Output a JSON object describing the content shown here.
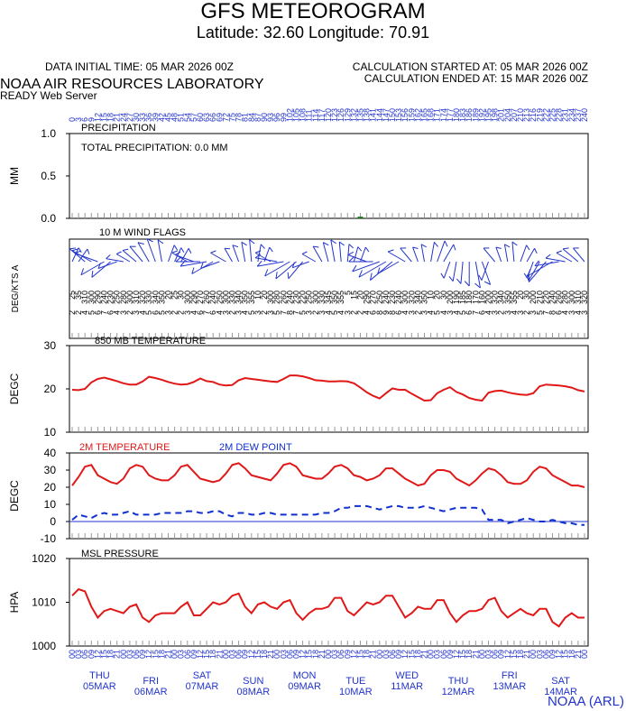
{
  "title": "GFS METEOROGRAM",
  "subtitle": "Latitude: 32.60 Longitude:  70.91",
  "data_initial_time": "DATA INITIAL TIME: 05 MAR 2026 00Z",
  "calc_started": "CALCULATION STARTED AT: 05 MAR 2026 00Z",
  "calc_ended": "CALCULATION ENDED AT: 15 MAR 2026 00Z",
  "org": "NOAA AIR RESOURCES LABORATORY",
  "server": "READY Web Server",
  "footer": "NOAA (ARL)",
  "xlim": [
    0,
    240
  ],
  "forecast_hours": [
    0,
    3,
    6,
    9,
    12,
    15,
    18,
    21,
    24,
    27,
    30,
    33,
    36,
    39,
    42,
    45,
    48,
    51,
    54,
    57,
    60,
    63,
    66,
    69,
    72,
    75,
    78,
    81,
    84,
    87,
    90,
    93,
    96,
    99,
    102,
    105,
    108,
    111,
    114,
    117,
    120,
    123,
    126,
    129,
    132,
    135,
    138,
    141,
    144,
    147,
    150,
    153,
    156,
    159,
    162,
    165,
    168,
    171,
    174,
    177,
    180,
    183,
    186,
    189,
    192,
    195,
    198,
    201,
    204,
    207,
    210,
    213,
    216,
    219,
    222,
    225,
    228,
    231,
    234,
    237,
    240
  ],
  "hour_labels": [
    "00",
    "03",
    "06",
    "09",
    "12",
    "15",
    "18",
    "21",
    "00",
    "03",
    "06",
    "09",
    "12",
    "15",
    "18",
    "21",
    "00",
    "03",
    "06",
    "09",
    "12",
    "15",
    "18",
    "21",
    "00",
    "03",
    "06",
    "09",
    "12",
    "15",
    "18",
    "21",
    "00",
    "03",
    "06",
    "09",
    "12",
    "15",
    "18",
    "21",
    "00",
    "03",
    "06",
    "09",
    "12",
    "15",
    "18",
    "21",
    "00",
    "03",
    "06",
    "09",
    "12",
    "15",
    "18",
    "21",
    "00",
    "03",
    "06",
    "09",
    "12",
    "15",
    "18",
    "21",
    "00",
    "03",
    "06",
    "09",
    "12",
    "15",
    "18",
    "21",
    "00",
    "03",
    "06",
    "09",
    "12",
    "15",
    "18",
    "21",
    "00"
  ],
  "days": [
    {
      "name": "THU",
      "date": "05MAR"
    },
    {
      "name": "FRI",
      "date": "06MAR"
    },
    {
      "name": "SAT",
      "date": "07MAR"
    },
    {
      "name": "SUN",
      "date": "08MAR"
    },
    {
      "name": "MON",
      "date": "09MAR"
    },
    {
      "name": "TUE",
      "date": "10MAR"
    },
    {
      "name": "WED",
      "date": "11MAR"
    },
    {
      "name": "THU",
      "date": "12MAR"
    },
    {
      "name": "FRI",
      "date": "13MAR"
    },
    {
      "name": "SAT",
      "date": "14MAR"
    }
  ],
  "chart_data": [
    {
      "type": "bar",
      "title": "PRECIPITATION",
      "annotation": "TOTAL PRECIPITATION:   0.0 MM",
      "y_label": "MM",
      "color": "#1a7a1a",
      "ylim": [
        0,
        1
      ],
      "yticks": [
        {
          "value": 0,
          "label": "0.0"
        },
        {
          "value": 0.5,
          "label": "0.5"
        },
        {
          "value": 1,
          "label": "1.0"
        }
      ],
      "values": [
        0,
        0,
        0,
        0,
        0,
        0,
        0,
        0,
        0,
        0,
        0,
        0,
        0,
        0,
        0,
        0,
        0,
        0,
        0,
        0,
        0,
        0,
        0,
        0,
        0,
        0,
        0,
        0,
        0,
        0,
        0,
        0,
        0,
        0,
        0,
        0,
        0,
        0,
        0,
        0,
        0,
        0,
        0,
        0,
        0,
        0.02,
        0,
        0,
        0,
        0,
        0,
        0,
        0,
        0,
        0,
        0,
        0,
        0,
        0,
        0,
        0,
        0,
        0,
        0,
        0,
        0,
        0,
        0,
        0,
        0,
        0,
        0,
        0,
        0,
        0,
        0,
        0,
        0,
        0,
        0,
        0
      ]
    },
    {
      "type": "wind",
      "title": "10 M  WIND FLAGS",
      "y_label": "DEG/KTS  A",
      "color": "#2233cc",
      "directions": [
        25,
        35,
        310,
        300,
        290,
        240,
        230,
        250,
        280,
        300,
        310,
        320,
        330,
        340,
        350,
        20,
        25,
        30,
        300,
        290,
        270,
        260,
        240,
        250,
        300,
        330,
        340,
        350,
        355,
        10,
        20,
        300,
        280,
        260,
        240,
        230,
        220,
        250,
        300,
        330,
        345,
        350,
        355,
        5,
        15,
        20,
        290,
        270,
        250,
        240,
        230,
        240,
        300,
        320,
        340,
        350,
        10,
        20,
        30,
        200,
        190,
        185,
        180,
        170,
        160,
        200,
        320,
        340,
        350,
        355,
        20,
        30,
        200,
        210,
        220,
        240,
        260,
        280,
        300,
        310,
        320
      ],
      "speeds": [
        2,
        2,
        4,
        5,
        6,
        7,
        6,
        4,
        3,
        2,
        3,
        4,
        5,
        6,
        5,
        3,
        2,
        2,
        3,
        4,
        6,
        7,
        6,
        4,
        3,
        2,
        3,
        4,
        5,
        3,
        2,
        3,
        5,
        7,
        8,
        7,
        5,
        3,
        2,
        3,
        4,
        5,
        4,
        3,
        2,
        2,
        4,
        6,
        8,
        9,
        8,
        6,
        4,
        3,
        2,
        3,
        4,
        5,
        4,
        3,
        4,
        5,
        6,
        7,
        6,
        4,
        3,
        2,
        3,
        4,
        3,
        2,
        3,
        5,
        7,
        8,
        6,
        4,
        3,
        4,
        3
      ]
    },
    {
      "type": "line",
      "title": "850 MB  TEMPERATURE",
      "y_label": "DEGC",
      "ylim": [
        10,
        30
      ],
      "yticks": [
        10,
        20,
        30
      ],
      "series": [
        {
          "color": "#e01818",
          "values": [
            19.8,
            19.7,
            20.0,
            21.5,
            22.3,
            22.6,
            22.2,
            21.8,
            21.3,
            21.0,
            21.0,
            21.7,
            22.8,
            22.5,
            22.1,
            21.6,
            21.2,
            21.0,
            21.1,
            21.6,
            22.4,
            21.8,
            21.6,
            21.0,
            20.8,
            20.9,
            22.0,
            22.5,
            22.3,
            22.1,
            21.9,
            21.7,
            21.6,
            22.3,
            23.1,
            23.1,
            22.9,
            22.5,
            22.0,
            21.9,
            21.7,
            21.7,
            21.8,
            21.7,
            21.3,
            20.3,
            19.2,
            18.4,
            17.8,
            19.0,
            20.1,
            19.8,
            19.8,
            18.9,
            18.1,
            17.3,
            17.4,
            19.0,
            19.8,
            20.4,
            19.3,
            18.7,
            17.9,
            17.5,
            17.3,
            19.1,
            19.5,
            19.6,
            19.2,
            18.9,
            18.7,
            18.6,
            19.0,
            20.6,
            21.0,
            20.9,
            20.8,
            20.6,
            20.3,
            19.7,
            19.4
          ]
        }
      ]
    },
    {
      "type": "line",
      "y_label": "DEGC",
      "ylim": [
        -10,
        40
      ],
      "yticks": [
        -10,
        0,
        10,
        20,
        30,
        40
      ],
      "zero_line": true,
      "series": [
        {
          "name": "2M TEMPERATURE",
          "color": "#e01818",
          "values": [
            21,
            26,
            32,
            33,
            27,
            25,
            23,
            22,
            25,
            31,
            33,
            32,
            27,
            25,
            24,
            24,
            27,
            32,
            33,
            29,
            25,
            24,
            23,
            24,
            28,
            33,
            34,
            31,
            27,
            26,
            25,
            24,
            28,
            33,
            34,
            32,
            27,
            26,
            25,
            25,
            28,
            32,
            33,
            31,
            27,
            26,
            24,
            25,
            27,
            31,
            31,
            28,
            25,
            23,
            21,
            22,
            27,
            30,
            30,
            29,
            25,
            23,
            21,
            24,
            28,
            31,
            30,
            27,
            23,
            22,
            22,
            24,
            29,
            32,
            31,
            27,
            25,
            23,
            21,
            21,
            20
          ]
        },
        {
          "name": "2M  DEW POINT",
          "color": "#1030d0",
          "dashed": true,
          "values": [
            1,
            4,
            3,
            2,
            4,
            5,
            4,
            4,
            5,
            6,
            4,
            4,
            4,
            4,
            5,
            5,
            5,
            5,
            6,
            6,
            5,
            5,
            6,
            6,
            4,
            3,
            5,
            5,
            4,
            4,
            5,
            5,
            4,
            4,
            4,
            4,
            4,
            4,
            4,
            5,
            5,
            6,
            8,
            8,
            9,
            9,
            9,
            8,
            7,
            8,
            9,
            9,
            8,
            8,
            8,
            9,
            8,
            7,
            6,
            7,
            8,
            8,
            8,
            8,
            7,
            1,
            1,
            1,
            -1,
            0,
            1,
            2,
            1,
            0,
            0,
            1,
            0,
            -1,
            -1,
            -2,
            -2
          ]
        }
      ]
    },
    {
      "type": "line",
      "title": "MSL PRESSURE",
      "y_label": "HPA",
      "ylim": [
        1000,
        1020
      ],
      "yticks": [
        1000,
        1010,
        1020
      ],
      "series": [
        {
          "color": "#e01818",
          "values": [
            1011.5,
            1013,
            1012.5,
            1009,
            1006.5,
            1008,
            1008.5,
            1008,
            1007.5,
            1009,
            1009.5,
            1006.5,
            1005.5,
            1007,
            1007.5,
            1007.5,
            1007.5,
            1009,
            1010,
            1007,
            1007,
            1008.5,
            1010,
            1009.5,
            1010,
            1011.5,
            1012,
            1009,
            1007.5,
            1009.5,
            1010,
            1009,
            1008.5,
            1010,
            1010.5,
            1007.5,
            1006,
            1007.5,
            1008.5,
            1008.5,
            1009,
            1011,
            1011,
            1008,
            1007,
            1008.5,
            1010,
            1009.5,
            1010,
            1011.5,
            1011.5,
            1009,
            1006.5,
            1007.5,
            1009,
            1008.5,
            1008.5,
            1010.5,
            1010.5,
            1007.5,
            1005.5,
            1007,
            1008,
            1008,
            1008.5,
            1010.5,
            1011,
            1008,
            1006.5,
            1007.5,
            1008.5,
            1007.5,
            1007,
            1008.5,
            1008.5,
            1005.5,
            1004.5,
            1006.5,
            1007.5,
            1006.5,
            1006.5
          ]
        }
      ]
    }
  ]
}
